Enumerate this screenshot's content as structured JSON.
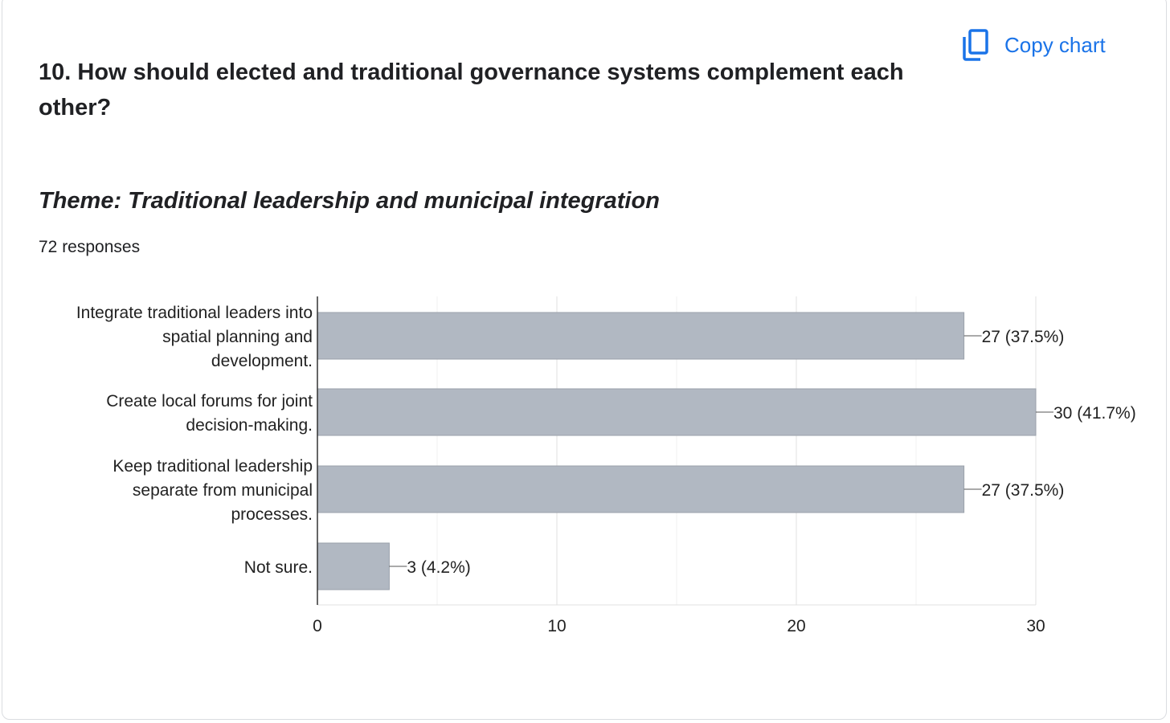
{
  "header": {
    "question": "10. How should elected and traditional governance systems complement each other?",
    "copy_label": "Copy chart",
    "copy_icon": "copy-icon",
    "accent_color": "#1a73e8"
  },
  "subtitle": "Theme: Traditional leadership and municipal integration",
  "responses": "72 responses",
  "chart_data": {
    "type": "bar",
    "orientation": "horizontal",
    "categories": [
      [
        "Integrate traditional leaders into",
        "spatial planning and",
        "development."
      ],
      [
        "Create local forums for joint",
        "decision-making."
      ],
      [
        "Keep traditional leadership",
        "separate from municipal",
        "processes."
      ],
      [
        "Not sure."
      ]
    ],
    "values": [
      27,
      30,
      27,
      3
    ],
    "data_labels": [
      "27 (37.5%)",
      "30 (41.7%)",
      "27 (37.5%)",
      "3 (4.2%)"
    ],
    "xlim": [
      0,
      30
    ],
    "xticks": [
      0,
      10,
      20,
      30
    ],
    "grid": true,
    "bar_color": "#b1b8c2",
    "title": "",
    "xlabel": "",
    "ylabel": ""
  }
}
